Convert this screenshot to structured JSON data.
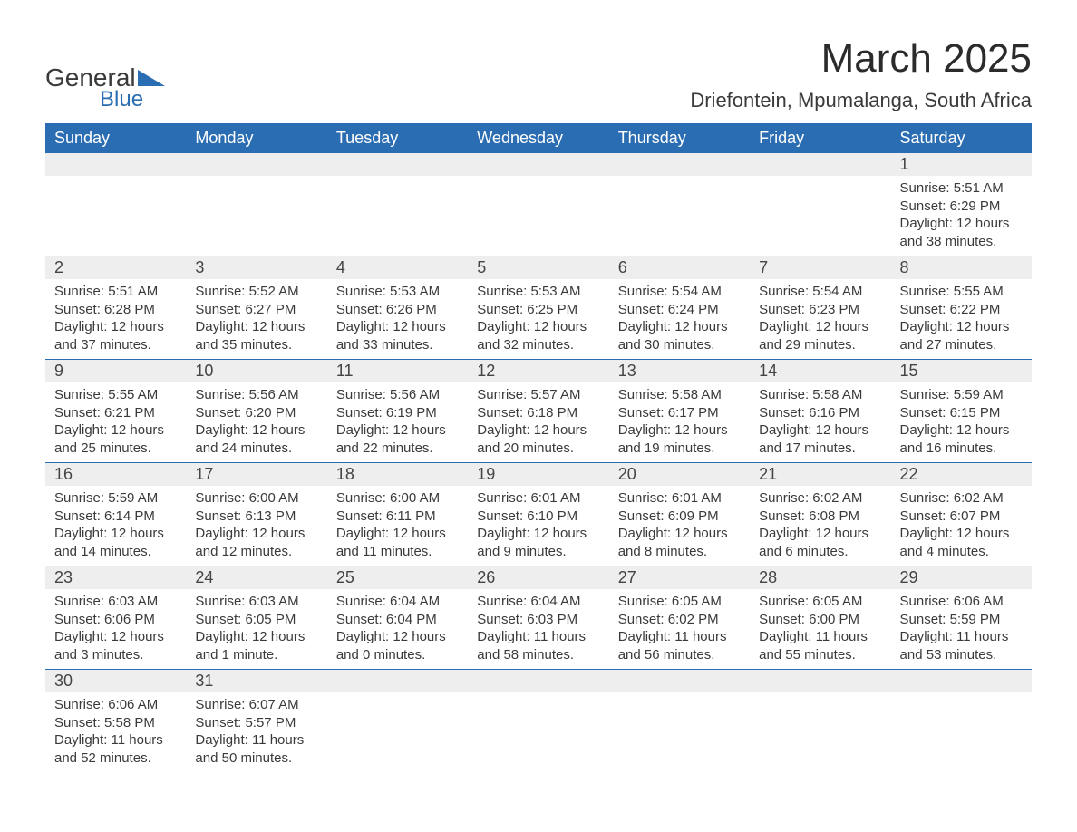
{
  "logo": {
    "word_general": "General",
    "word_blue": "Blue",
    "shape_color": "#2a6db2",
    "text_color_general": "#3a3a3a",
    "text_color_blue": "#2a6db2"
  },
  "title": "March 2025",
  "location": "Driefontein, Mpumalanga, South Africa",
  "colors": {
    "header_bg": "#2a6db2",
    "header_text": "#ffffff",
    "daynum_bg": "#eeeeee",
    "row_border": "#2a6db2",
    "body_text": "#3a3a3a",
    "page_bg": "#ffffff"
  },
  "fonts": {
    "title_size_pt": 44,
    "location_size_pt": 22,
    "dayheader_size_pt": 18,
    "daynum_size_pt": 18,
    "body_size_pt": 15
  },
  "day_headers": [
    "Sunday",
    "Monday",
    "Tuesday",
    "Wednesday",
    "Thursday",
    "Friday",
    "Saturday"
  ],
  "weeks": [
    [
      null,
      null,
      null,
      null,
      null,
      null,
      {
        "n": "1",
        "sunrise": "Sunrise: 5:51 AM",
        "sunset": "Sunset: 6:29 PM",
        "day1": "Daylight: 12 hours",
        "day2": "and 38 minutes."
      }
    ],
    [
      {
        "n": "2",
        "sunrise": "Sunrise: 5:51 AM",
        "sunset": "Sunset: 6:28 PM",
        "day1": "Daylight: 12 hours",
        "day2": "and 37 minutes."
      },
      {
        "n": "3",
        "sunrise": "Sunrise: 5:52 AM",
        "sunset": "Sunset: 6:27 PM",
        "day1": "Daylight: 12 hours",
        "day2": "and 35 minutes."
      },
      {
        "n": "4",
        "sunrise": "Sunrise: 5:53 AM",
        "sunset": "Sunset: 6:26 PM",
        "day1": "Daylight: 12 hours",
        "day2": "and 33 minutes."
      },
      {
        "n": "5",
        "sunrise": "Sunrise: 5:53 AM",
        "sunset": "Sunset: 6:25 PM",
        "day1": "Daylight: 12 hours",
        "day2": "and 32 minutes."
      },
      {
        "n": "6",
        "sunrise": "Sunrise: 5:54 AM",
        "sunset": "Sunset: 6:24 PM",
        "day1": "Daylight: 12 hours",
        "day2": "and 30 minutes."
      },
      {
        "n": "7",
        "sunrise": "Sunrise: 5:54 AM",
        "sunset": "Sunset: 6:23 PM",
        "day1": "Daylight: 12 hours",
        "day2": "and 29 minutes."
      },
      {
        "n": "8",
        "sunrise": "Sunrise: 5:55 AM",
        "sunset": "Sunset: 6:22 PM",
        "day1": "Daylight: 12 hours",
        "day2": "and 27 minutes."
      }
    ],
    [
      {
        "n": "9",
        "sunrise": "Sunrise: 5:55 AM",
        "sunset": "Sunset: 6:21 PM",
        "day1": "Daylight: 12 hours",
        "day2": "and 25 minutes."
      },
      {
        "n": "10",
        "sunrise": "Sunrise: 5:56 AM",
        "sunset": "Sunset: 6:20 PM",
        "day1": "Daylight: 12 hours",
        "day2": "and 24 minutes."
      },
      {
        "n": "11",
        "sunrise": "Sunrise: 5:56 AM",
        "sunset": "Sunset: 6:19 PM",
        "day1": "Daylight: 12 hours",
        "day2": "and 22 minutes."
      },
      {
        "n": "12",
        "sunrise": "Sunrise: 5:57 AM",
        "sunset": "Sunset: 6:18 PM",
        "day1": "Daylight: 12 hours",
        "day2": "and 20 minutes."
      },
      {
        "n": "13",
        "sunrise": "Sunrise: 5:58 AM",
        "sunset": "Sunset: 6:17 PM",
        "day1": "Daylight: 12 hours",
        "day2": "and 19 minutes."
      },
      {
        "n": "14",
        "sunrise": "Sunrise: 5:58 AM",
        "sunset": "Sunset: 6:16 PM",
        "day1": "Daylight: 12 hours",
        "day2": "and 17 minutes."
      },
      {
        "n": "15",
        "sunrise": "Sunrise: 5:59 AM",
        "sunset": "Sunset: 6:15 PM",
        "day1": "Daylight: 12 hours",
        "day2": "and 16 minutes."
      }
    ],
    [
      {
        "n": "16",
        "sunrise": "Sunrise: 5:59 AM",
        "sunset": "Sunset: 6:14 PM",
        "day1": "Daylight: 12 hours",
        "day2": "and 14 minutes."
      },
      {
        "n": "17",
        "sunrise": "Sunrise: 6:00 AM",
        "sunset": "Sunset: 6:13 PM",
        "day1": "Daylight: 12 hours",
        "day2": "and 12 minutes."
      },
      {
        "n": "18",
        "sunrise": "Sunrise: 6:00 AM",
        "sunset": "Sunset: 6:11 PM",
        "day1": "Daylight: 12 hours",
        "day2": "and 11 minutes."
      },
      {
        "n": "19",
        "sunrise": "Sunrise: 6:01 AM",
        "sunset": "Sunset: 6:10 PM",
        "day1": "Daylight: 12 hours",
        "day2": "and 9 minutes."
      },
      {
        "n": "20",
        "sunrise": "Sunrise: 6:01 AM",
        "sunset": "Sunset: 6:09 PM",
        "day1": "Daylight: 12 hours",
        "day2": "and 8 minutes."
      },
      {
        "n": "21",
        "sunrise": "Sunrise: 6:02 AM",
        "sunset": "Sunset: 6:08 PM",
        "day1": "Daylight: 12 hours",
        "day2": "and 6 minutes."
      },
      {
        "n": "22",
        "sunrise": "Sunrise: 6:02 AM",
        "sunset": "Sunset: 6:07 PM",
        "day1": "Daylight: 12 hours",
        "day2": "and 4 minutes."
      }
    ],
    [
      {
        "n": "23",
        "sunrise": "Sunrise: 6:03 AM",
        "sunset": "Sunset: 6:06 PM",
        "day1": "Daylight: 12 hours",
        "day2": "and 3 minutes."
      },
      {
        "n": "24",
        "sunrise": "Sunrise: 6:03 AM",
        "sunset": "Sunset: 6:05 PM",
        "day1": "Daylight: 12 hours",
        "day2": "and 1 minute."
      },
      {
        "n": "25",
        "sunrise": "Sunrise: 6:04 AM",
        "sunset": "Sunset: 6:04 PM",
        "day1": "Daylight: 12 hours",
        "day2": "and 0 minutes."
      },
      {
        "n": "26",
        "sunrise": "Sunrise: 6:04 AM",
        "sunset": "Sunset: 6:03 PM",
        "day1": "Daylight: 11 hours",
        "day2": "and 58 minutes."
      },
      {
        "n": "27",
        "sunrise": "Sunrise: 6:05 AM",
        "sunset": "Sunset: 6:02 PM",
        "day1": "Daylight: 11 hours",
        "day2": "and 56 minutes."
      },
      {
        "n": "28",
        "sunrise": "Sunrise: 6:05 AM",
        "sunset": "Sunset: 6:00 PM",
        "day1": "Daylight: 11 hours",
        "day2": "and 55 minutes."
      },
      {
        "n": "29",
        "sunrise": "Sunrise: 6:06 AM",
        "sunset": "Sunset: 5:59 PM",
        "day1": "Daylight: 11 hours",
        "day2": "and 53 minutes."
      }
    ],
    [
      {
        "n": "30",
        "sunrise": "Sunrise: 6:06 AM",
        "sunset": "Sunset: 5:58 PM",
        "day1": "Daylight: 11 hours",
        "day2": "and 52 minutes."
      },
      {
        "n": "31",
        "sunrise": "Sunrise: 6:07 AM",
        "sunset": "Sunset: 5:57 PM",
        "day1": "Daylight: 11 hours",
        "day2": "and 50 minutes."
      },
      null,
      null,
      null,
      null,
      null
    ]
  ]
}
